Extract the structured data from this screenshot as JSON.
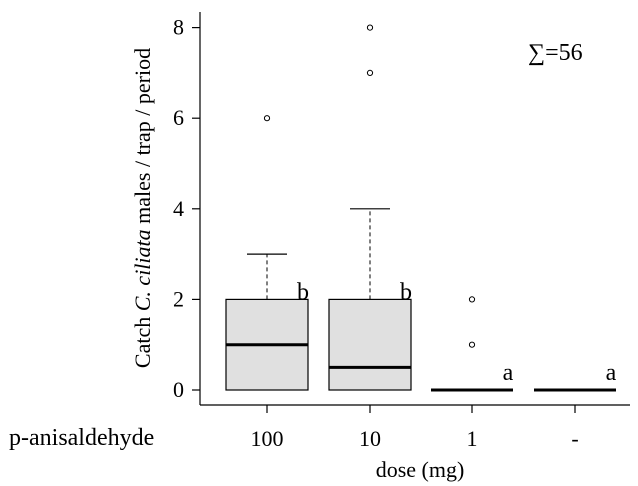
{
  "chart_data": {
    "type": "box",
    "row_label": "p-anisaldehyde",
    "categories": [
      "100",
      "10",
      "1",
      "-"
    ],
    "xlabel": "dose (mg)",
    "ylabel": {
      "prefix": "Catch ",
      "italic": "C. ciliata",
      "suffix": " males / trap / period"
    },
    "ylim": [
      -0.3,
      8.3
    ],
    "yticks": [
      "0",
      "2",
      "4",
      "6",
      "8"
    ],
    "annotation": "∑=56",
    "boxes": [
      {
        "category": "100",
        "min": 0,
        "q1": 0,
        "median": 1.0,
        "q3": 2,
        "max": 3,
        "outliers": [
          6
        ],
        "letter": "b"
      },
      {
        "category": "10",
        "min": 0,
        "q1": 0,
        "median": 0.5,
        "q3": 2,
        "max": 4,
        "outliers": [
          7,
          8
        ],
        "letter": "b"
      },
      {
        "category": "1",
        "min": 0,
        "q1": 0,
        "median": 0,
        "q3": 0,
        "max": 0,
        "outliers": [
          1,
          2
        ],
        "letter": "a"
      },
      {
        "category": "-",
        "min": 0,
        "q1": 0,
        "median": 0,
        "q3": 0,
        "max": 0,
        "outliers": [],
        "letter": "a"
      }
    ],
    "box_fill": "#e0e0e0",
    "line_color": "#000000",
    "grid": false,
    "legend": "none"
  }
}
